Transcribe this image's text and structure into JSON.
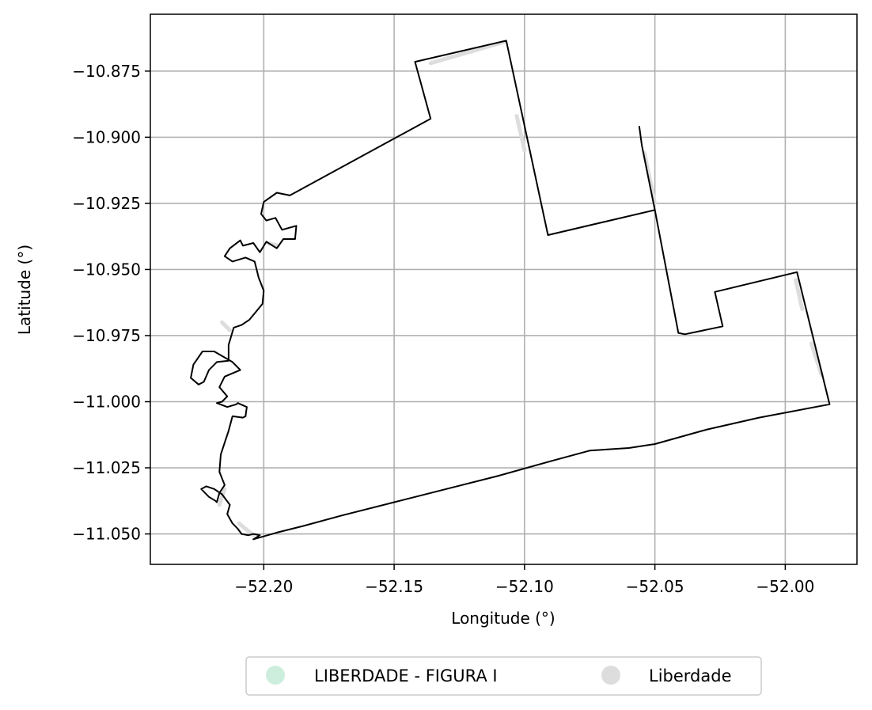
{
  "chart_data": {
    "type": "map",
    "xlabel": "Longitude (°)",
    "ylabel": "Latitude (°)",
    "xlim": [
      -52.2435,
      -51.9725
    ],
    "ylim": [
      -11.0615,
      -10.8535
    ],
    "grid": true,
    "x_ticks": [
      {
        "value": -52.2,
        "label": "−52.20"
      },
      {
        "value": -52.15,
        "label": "−52.15"
      },
      {
        "value": -52.1,
        "label": "−52.10"
      },
      {
        "value": -52.05,
        "label": "−52.05"
      },
      {
        "value": -52.0,
        "label": "−52.00"
      }
    ],
    "y_ticks": [
      {
        "value": -10.875,
        "label": "−10.875"
      },
      {
        "value": -10.9,
        "label": "−10.900"
      },
      {
        "value": -10.925,
        "label": "−10.925"
      },
      {
        "value": -10.95,
        "label": "−10.950"
      },
      {
        "value": -10.975,
        "label": "−10.975"
      },
      {
        "value": -11.0,
        "label": "−11.000"
      },
      {
        "value": -11.025,
        "label": "−11.025"
      },
      {
        "value": -11.05,
        "label": "−11.050"
      }
    ],
    "legend": {
      "placement": "bottom-center",
      "entries": [
        {
          "name": "LIBERDADE - FIGURA I",
          "color": "#cdeedd"
        },
        {
          "name": "Liberdade",
          "color": "#dddddd"
        }
      ]
    },
    "layers": [
      {
        "name": "LIBERDADE - FIGURA I",
        "color": "#000000",
        "polylines": [
          [
            [
              -52.204,
              -11.052
            ],
            [
              -52.195,
              -11.0495
            ],
            [
              -52.185,
              -11.047
            ],
            [
              -52.17,
              -11.043
            ],
            [
              -52.15,
              -11.038
            ],
            [
              -52.13,
              -11.033
            ],
            [
              -52.11,
              -11.028
            ],
            [
              -52.09,
              -11.0225
            ],
            [
              -52.075,
              -11.0185
            ],
            [
              -52.06,
              -11.0175
            ],
            [
              -52.05,
              -11.016
            ],
            [
              -52.03,
              -11.0105
            ],
            [
              -52.01,
              -11.006
            ],
            [
              -51.983,
              -11.001
            ],
            [
              -51.9955,
              -10.951
            ],
            [
              -52.027,
              -10.9585
            ],
            [
              -52.024,
              -10.9715
            ],
            [
              -52.0385,
              -10.9745
            ],
            [
              -52.041,
              -10.974
            ],
            [
              -52.05,
              -10.9275
            ],
            [
              -52.091,
              -10.937
            ],
            [
              -52.107,
              -10.8635
            ],
            [
              -52.142,
              -10.8715
            ],
            [
              -52.136,
              -10.893
            ],
            [
              -52.19,
              -10.922
            ],
            [
              -52.195,
              -10.921
            ],
            [
              -52.2,
              -10.9245
            ],
            [
              -52.201,
              -10.929
            ],
            [
              -52.199,
              -10.9315
            ],
            [
              -52.1955,
              -10.9305
            ],
            [
              -52.193,
              -10.935
            ],
            [
              -52.1875,
              -10.9335
            ],
            [
              -52.188,
              -10.9385
            ],
            [
              -52.1925,
              -10.9385
            ],
            [
              -52.195,
              -10.942
            ],
            [
              -52.199,
              -10.9395
            ],
            [
              -52.2015,
              -10.9435
            ],
            [
              -52.204,
              -10.94
            ],
            [
              -52.208,
              -10.941
            ],
            [
              -52.209,
              -10.939
            ],
            [
              -52.213,
              -10.942
            ],
            [
              -52.215,
              -10.945
            ],
            [
              -52.212,
              -10.947
            ],
            [
              -52.207,
              -10.9455
            ],
            [
              -52.2035,
              -10.947
            ],
            [
              -52.202,
              -10.953
            ],
            [
              -52.2,
              -10.958
            ],
            [
              -52.2005,
              -10.963
            ],
            [
              -52.203,
              -10.966
            ],
            [
              -52.2055,
              -10.969
            ],
            [
              -52.2085,
              -10.971
            ],
            [
              -52.2115,
              -10.972
            ],
            [
              -52.2135,
              -10.9785
            ],
            [
              -52.2135,
              -10.9845
            ],
            [
              -52.218,
              -10.985
            ],
            [
              -52.221,
              -10.988
            ],
            [
              -52.223,
              -10.9925
            ],
            [
              -52.225,
              -10.9935
            ],
            [
              -52.228,
              -10.991
            ],
            [
              -52.227,
              -10.986
            ],
            [
              -52.2235,
              -10.981
            ],
            [
              -52.219,
              -10.981
            ],
            [
              -52.212,
              -10.985
            ],
            [
              -52.209,
              -10.988
            ],
            [
              -52.215,
              -10.9905
            ],
            [
              -52.217,
              -10.9945
            ],
            [
              -52.214,
              -10.998
            ],
            [
              -52.216,
              -11.0
            ],
            [
              -52.218,
              -11.0005
            ],
            [
              -52.214,
              -11.002
            ],
            [
              -52.2105,
              -11.001
            ],
            [
              -52.21,
              -11.0005
            ],
            [
              -52.2065,
              -11.002
            ],
            [
              -52.207,
              -11.0055
            ],
            [
              -52.208,
              -11.006
            ],
            [
              -52.212,
              -11.0055
            ],
            [
              -52.2135,
              -11.011
            ],
            [
              -52.215,
              -11.0155
            ],
            [
              -52.2165,
              -11.02
            ],
            [
              -52.217,
              -11.0265
            ],
            [
              -52.215,
              -11.0315
            ],
            [
              -52.217,
              -11.0345
            ],
            [
              -52.218,
              -11.038
            ],
            [
              -52.2185,
              -11.0375
            ],
            [
              -52.221,
              -11.036
            ],
            [
              -52.224,
              -11.033
            ],
            [
              -52.222,
              -11.032
            ],
            [
              -52.219,
              -11.033
            ],
            [
              -52.216,
              -11.035
            ],
            [
              -52.213,
              -11.039
            ],
            [
              -52.214,
              -11.0425
            ],
            [
              -52.212,
              -11.046
            ],
            [
              -52.21,
              -11.048
            ],
            [
              -52.2085,
              -11.05
            ],
            [
              -52.206,
              -11.0505
            ],
            [
              -52.204,
              -11.05
            ],
            [
              -52.2015,
              -11.0505
            ],
            [
              -52.204,
              -11.052
            ]
          ],
          [
            [
              -52.056,
              -10.896
            ],
            [
              -52.055,
              -10.903
            ],
            [
              -52.05,
              -10.9275
            ]
          ]
        ]
      },
      {
        "name": "Liberdade",
        "color": "#dddddd",
        "polylines": [
          [
            [
              -52.136,
              -10.872
            ],
            [
              -52.108,
              -10.864
            ]
          ],
          [
            [
              -52.103,
              -10.892
            ],
            [
              -52.1,
              -10.905
            ]
          ],
          [
            [
              -52.054,
              -10.906
            ],
            [
              -52.05,
              -10.925
            ]
          ],
          [
            [
              -51.996,
              -10.954
            ],
            [
              -51.9935,
              -10.965
            ]
          ],
          [
            [
              -51.99,
              -10.978
            ],
            [
              -51.986,
              -10.99
            ]
          ],
          [
            [
              -52.216,
              -10.97
            ],
            [
              -52.213,
              -10.973
            ]
          ],
          [
            [
              -52.1985,
              -10.94
            ],
            [
              -52.1945,
              -10.941
            ]
          ],
          [
            [
              -52.215,
              -11.033
            ],
            [
              -52.217,
              -11.039
            ]
          ],
          [
            [
              -52.2095,
              -11.046
            ],
            [
              -52.204,
              -11.0505
            ]
          ]
        ]
      }
    ]
  }
}
